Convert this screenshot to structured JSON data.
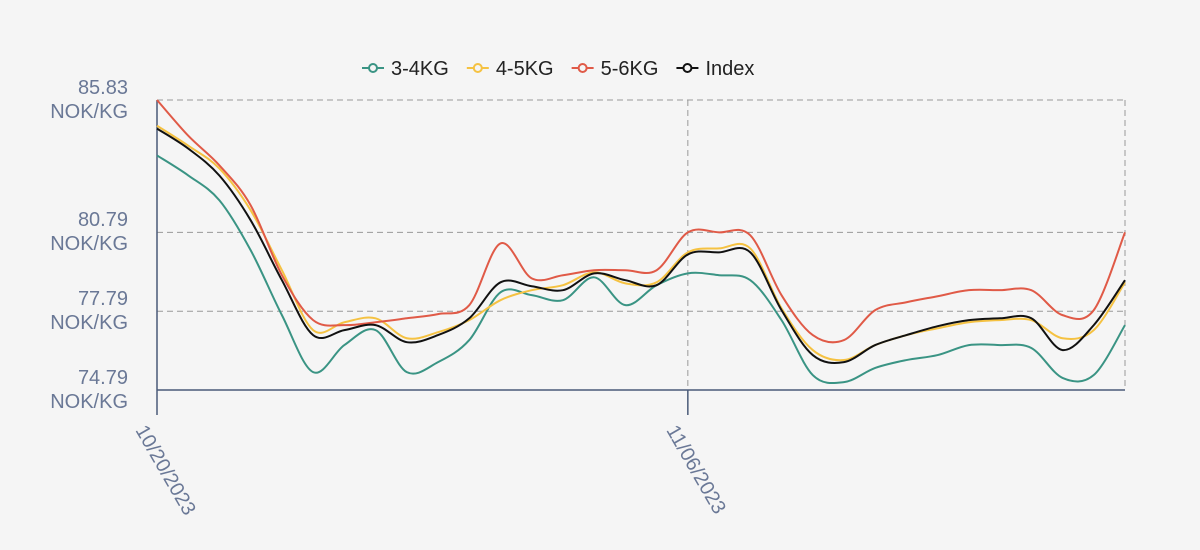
{
  "chart_data": {
    "type": "line",
    "x": [
      "10/20/2023",
      "10/21/2023",
      "10/22/2023",
      "10/23/2023",
      "10/24/2023",
      "10/25/2023",
      "10/26/2023",
      "10/27/2023",
      "10/28/2023",
      "10/29/2023",
      "10/30/2023",
      "10/31/2023",
      "11/01/2023",
      "11/02/2023",
      "11/03/2023",
      "11/04/2023",
      "11/05/2023",
      "11/06/2023",
      "11/07/2023",
      "11/08/2023",
      "11/09/2023",
      "11/10/2023",
      "11/11/2023",
      "11/12/2023",
      "11/13/2023",
      "11/14/2023",
      "11/15/2023",
      "11/16/2023",
      "11/17/2023",
      "11/18/2023",
      "11/19/2023",
      "11/20/2023"
    ],
    "xlim": [
      "10/20/2023",
      "11/20/2023"
    ],
    "xticks": [
      "10/20/2023",
      "11/06/2023"
    ],
    "ylim": [
      74.79,
      85.83
    ],
    "yticks": [
      {
        "value": 74.79,
        "label": "74.79 NOK/KG"
      },
      {
        "value": 77.79,
        "label": "77.79 NOK/KG"
      },
      {
        "value": 80.79,
        "label": "80.79 NOK/KG"
      },
      {
        "value": 85.83,
        "label": "85.83 NOK/KG"
      }
    ],
    "grid": true,
    "legend": "top",
    "series": [
      {
        "name": "3-4KG",
        "color": "#3a9484",
        "values": [
          83.72,
          82.96,
          82.01,
          80.11,
          77.64,
          75.47,
          76.5,
          77.07,
          75.47,
          75.85,
          76.69,
          78.51,
          78.4,
          78.21,
          79.08,
          78.02,
          78.78,
          79.23,
          79.16,
          78.97,
          77.45,
          75.36,
          75.09,
          75.63,
          75.93,
          76.12,
          76.5,
          76.5,
          76.39,
          75.25,
          75.36,
          77.26
        ]
      },
      {
        "name": "4-5KG",
        "color": "#f5c242",
        "values": [
          84.85,
          84.09,
          83.22,
          81.63,
          79.35,
          77.07,
          77.37,
          77.52,
          76.76,
          76.99,
          77.45,
          78.21,
          78.59,
          78.78,
          79.27,
          78.85,
          78.89,
          80.03,
          80.18,
          80.18,
          77.9,
          76.31,
          75.93,
          76.5,
          76.88,
          77.14,
          77.37,
          77.45,
          77.45,
          76.76,
          77.07,
          78.89
        ]
      },
      {
        "name": "5-6KG",
        "color": "#e05a47",
        "values": [
          85.83,
          84.47,
          83.34,
          81.82,
          79.16,
          77.45,
          77.26,
          77.37,
          77.52,
          77.68,
          78.02,
          80.37,
          79.04,
          79.16,
          79.35,
          79.35,
          79.35,
          80.79,
          80.79,
          80.68,
          78.4,
          76.88,
          76.69,
          77.83,
          78.13,
          78.36,
          78.59,
          78.59,
          78.59,
          77.64,
          77.83,
          80.79
        ]
      },
      {
        "name": "Index",
        "color": "#111111",
        "values": [
          84.74,
          83.98,
          82.95,
          81.25,
          78.97,
          76.88,
          77.07,
          77.26,
          76.61,
          76.88,
          77.52,
          78.89,
          78.74,
          78.59,
          79.23,
          78.97,
          78.78,
          79.95,
          80.03,
          80.03,
          77.83,
          76.12,
          75.85,
          76.5,
          76.88,
          77.22,
          77.45,
          77.52,
          77.52,
          76.31,
          77.26,
          78.97
        ]
      }
    ]
  }
}
